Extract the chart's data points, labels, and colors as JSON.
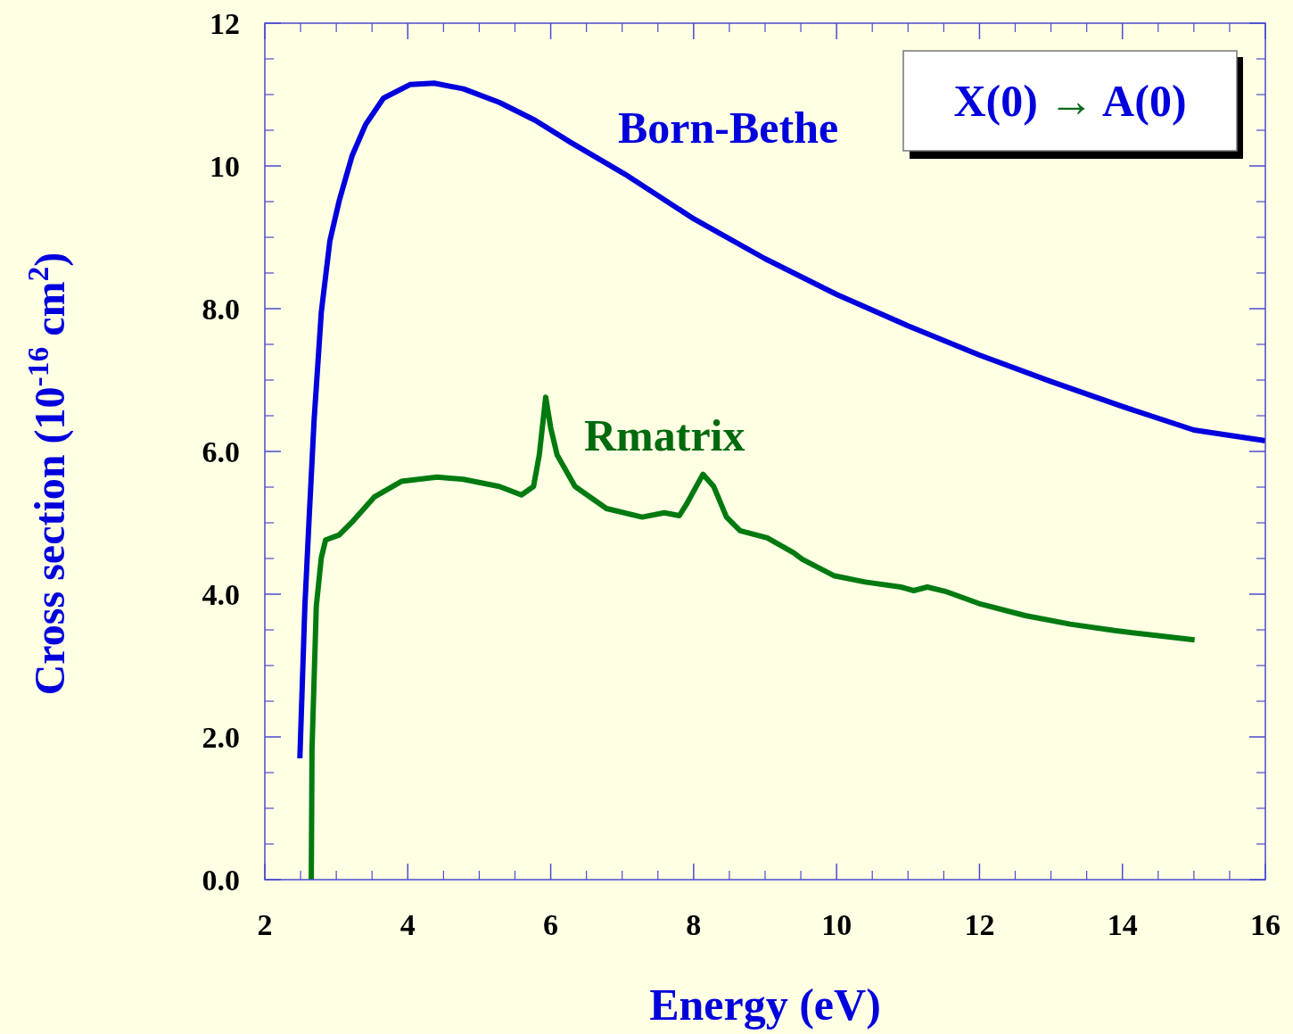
{
  "chart_data": {
    "type": "line",
    "xlabel": "Energy (eV)",
    "ylabel": "Cross section (10$^{-16}$ cm$^{2}$)",
    "annotations": [
      "X(0) → A(0)"
    ],
    "xlim": [
      2,
      16
    ],
    "ylim": [
      0,
      12
    ],
    "xticks": [
      2,
      4,
      6,
      8,
      10,
      12,
      14,
      16
    ],
    "yticks": [
      {
        "value": 0,
        "label": "0.0"
      },
      {
        "value": 2,
        "label": "2.0"
      },
      {
        "value": 4,
        "label": "4.0"
      },
      {
        "value": 6,
        "label": "6.0"
      },
      {
        "value": 8,
        "label": "8.0"
      },
      10,
      12
    ],
    "line_style": "solid",
    "series": [
      {
        "name": "Born-Bethe",
        "color": "#0000dd",
        "x": [
          2.49,
          2.56,
          2.62,
          2.69,
          2.79,
          2.91,
          3.04,
          3.22,
          3.41,
          3.66,
          4.03,
          4.37,
          4.78,
          5.28,
          5.78,
          6.28,
          7.03,
          8.0,
          9.0,
          10.0,
          11.0,
          12.0,
          13.0,
          14.0,
          15.0,
          16.0
        ],
        "values": [
          1.7,
          3.83,
          5.07,
          6.45,
          7.95,
          8.95,
          9.51,
          10.14,
          10.58,
          10.95,
          11.14,
          11.16,
          11.08,
          10.89,
          10.64,
          10.33,
          9.89,
          9.26,
          8.7,
          8.2,
          7.76,
          7.35,
          6.98,
          6.63,
          6.3,
          6.15
        ]
      },
      {
        "name": "Rmatrix",
        "color": "#007a10",
        "x": [
          2.65,
          2.66,
          2.72,
          2.79,
          2.85,
          3.04,
          3.22,
          3.53,
          3.91,
          4.41,
          4.78,
          5.28,
          5.59,
          5.76,
          5.84,
          5.93,
          6.0,
          6.09,
          6.34,
          6.78,
          7.28,
          7.59,
          7.8,
          7.9,
          8.13,
          8.28,
          8.46,
          8.65,
          9.03,
          9.4,
          9.52,
          9.96,
          10.4,
          10.9,
          11.08,
          11.27,
          11.52,
          12.02,
          12.64,
          13.27,
          13.89,
          14.39,
          15.01
        ],
        "values": [
          0,
          1.83,
          3.83,
          4.51,
          4.76,
          4.83,
          5.01,
          5.36,
          5.58,
          5.64,
          5.61,
          5.51,
          5.39,
          5.51,
          5.95,
          6.76,
          6.33,
          5.95,
          5.51,
          5.2,
          5.08,
          5.14,
          5.1,
          5.26,
          5.68,
          5.51,
          5.08,
          4.89,
          4.79,
          4.58,
          4.49,
          4.26,
          4.17,
          4.1,
          4.05,
          4.1,
          4.04,
          3.86,
          3.7,
          3.58,
          3.49,
          3.43,
          3.36
        ]
      }
    ]
  }
}
